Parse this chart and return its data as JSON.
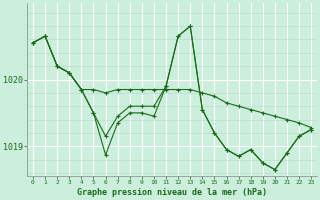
{
  "title": "Graphe pression niveau de la mer (hPa)",
  "bg_color": "#cceedd",
  "grid_color_major": "#ffffff",
  "grid_color_minor": "#b8ddd0",
  "line_color": "#1a6b1a",
  "xlim": [
    -0.5,
    23.5
  ],
  "ylim": [
    1018.55,
    1021.15
  ],
  "yticks": [
    1019,
    1020
  ],
  "xticks": [
    0,
    1,
    2,
    3,
    4,
    5,
    6,
    7,
    8,
    9,
    10,
    11,
    12,
    13,
    14,
    15,
    16,
    17,
    18,
    19,
    20,
    21,
    22,
    23
  ],
  "series1": [
    1020.55,
    1020.65,
    1020.2,
    1020.1,
    1019.85,
    1019.5,
    1019.15,
    1019.45,
    1019.6,
    1019.6,
    1019.6,
    1019.9,
    1020.65,
    1020.8,
    1019.55,
    1019.2,
    1018.95,
    1018.85,
    1018.95,
    1018.75,
    1018.65,
    1018.9,
    1019.15,
    1019.25
  ],
  "series2": [
    1020.55,
    1020.65,
    1020.2,
    1020.1,
    1019.85,
    1019.85,
    1019.8,
    1019.85,
    1019.85,
    1019.85,
    1019.85,
    1019.85,
    1019.85,
    1019.85,
    1019.8,
    1019.75,
    1019.65,
    1019.6,
    1019.55,
    1019.5,
    1019.45,
    1019.4,
    1019.35,
    1019.28
  ],
  "series3": [
    1020.55,
    1020.65,
    1020.2,
    1020.1,
    1019.85,
    1019.5,
    1018.87,
    1019.35,
    1019.5,
    1019.5,
    1019.45,
    1019.9,
    1020.65,
    1020.8,
    1019.55,
    1019.2,
    1018.95,
    1018.85,
    1018.95,
    1018.75,
    1018.65,
    1018.9,
    1019.15,
    1019.25
  ]
}
